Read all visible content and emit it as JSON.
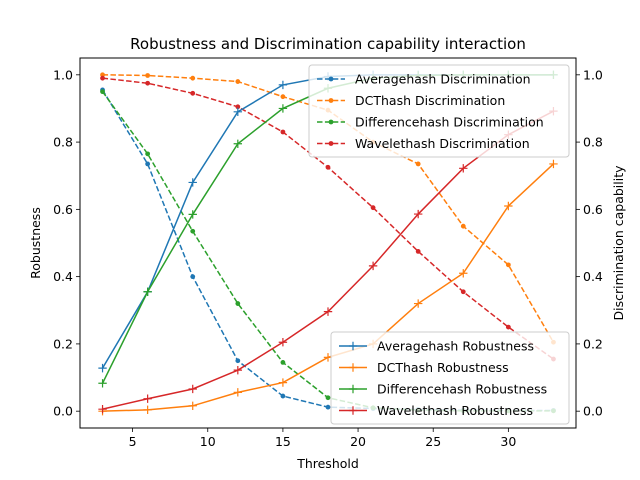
{
  "chart_data": {
    "type": "line",
    "title": "Robustness and Discrimination capability interaction",
    "xlabel": "Threshold",
    "ylabel": "Robustness",
    "y2label": "Discrimination capability",
    "x": [
      3,
      6,
      9,
      12,
      15,
      18,
      21,
      24,
      27,
      30,
      33
    ],
    "xlim": [
      1.5,
      34.5
    ],
    "ylim": [
      -0.05,
      1.05
    ],
    "y2lim": [
      -0.05,
      1.05
    ],
    "xticks": [
      5,
      10,
      15,
      20,
      25,
      30
    ],
    "xtick_labels": [
      "5",
      "10",
      "15",
      "20",
      "25",
      "30"
    ],
    "yticks": [
      0.0,
      0.2,
      0.4,
      0.6,
      0.8,
      1.0
    ],
    "ytick_labels": [
      "0.0",
      "0.2",
      "0.4",
      "0.6",
      "0.8",
      "1.0"
    ],
    "y2ticks": [
      0.0,
      0.2,
      0.4,
      0.6,
      0.8,
      1.0
    ],
    "y2tick_labels": [
      "0.0",
      "0.2",
      "0.4",
      "0.6",
      "0.8",
      "1.0"
    ],
    "grid": false,
    "legend_discrimination": "top-right",
    "legend_robustness": "lower-right",
    "series": [
      {
        "name": "Averagehash Discrimination",
        "axis": "right",
        "style": "dashed",
        "marker": "dot",
        "color": "#1f77b4",
        "values": [
          0.955,
          0.735,
          0.4,
          0.15,
          0.045,
          0.012,
          0.008,
          0.005,
          0.003,
          0.002,
          0.002
        ]
      },
      {
        "name": "DCThash Discrimination",
        "axis": "right",
        "style": "dashed",
        "marker": "dot",
        "color": "#ff7f0e",
        "values": [
          1.0,
          0.998,
          0.99,
          0.98,
          0.935,
          0.895,
          0.8,
          0.735,
          0.55,
          0.435,
          0.205
        ]
      },
      {
        "name": "Differencehash Discrimination",
        "axis": "right",
        "style": "dashed",
        "marker": "dot",
        "color": "#2ca02c",
        "values": [
          0.95,
          0.765,
          0.535,
          0.32,
          0.145,
          0.04,
          0.01,
          0.003,
          0.001,
          0.001,
          0.001
        ]
      },
      {
        "name": "Wavelethash Discrimination",
        "axis": "right",
        "style": "dashed",
        "marker": "dot",
        "color": "#d62728",
        "values": [
          0.99,
          0.975,
          0.945,
          0.905,
          0.83,
          0.725,
          0.605,
          0.475,
          0.355,
          0.25,
          0.155
        ]
      },
      {
        "name": "Averagehash Robustness",
        "axis": "left",
        "style": "solid",
        "marker": "plus",
        "color": "#1f77b4",
        "values": [
          0.128,
          0.355,
          0.68,
          0.89,
          0.97,
          0.995,
          1.0,
          1.0,
          1.0,
          1.0,
          1.0
        ]
      },
      {
        "name": "DCThash Robustness",
        "axis": "left",
        "style": "solid",
        "marker": "plus",
        "color": "#ff7f0e",
        "values": [
          0.0,
          0.004,
          0.016,
          0.056,
          0.085,
          0.16,
          0.2,
          0.32,
          0.41,
          0.61,
          0.735
        ]
      },
      {
        "name": "Differencehash Robustness",
        "axis": "left",
        "style": "solid",
        "marker": "plus",
        "color": "#2ca02c",
        "values": [
          0.083,
          0.355,
          0.585,
          0.795,
          0.9,
          0.96,
          0.99,
          0.998,
          1.0,
          1.0,
          1.0
        ]
      },
      {
        "name": "Wavelethash Robustness",
        "axis": "left",
        "style": "solid",
        "marker": "plus",
        "color": "#d62728",
        "values": [
          0.006,
          0.037,
          0.066,
          0.122,
          0.205,
          0.296,
          0.432,
          0.586,
          0.722,
          0.822,
          0.892
        ]
      }
    ]
  }
}
